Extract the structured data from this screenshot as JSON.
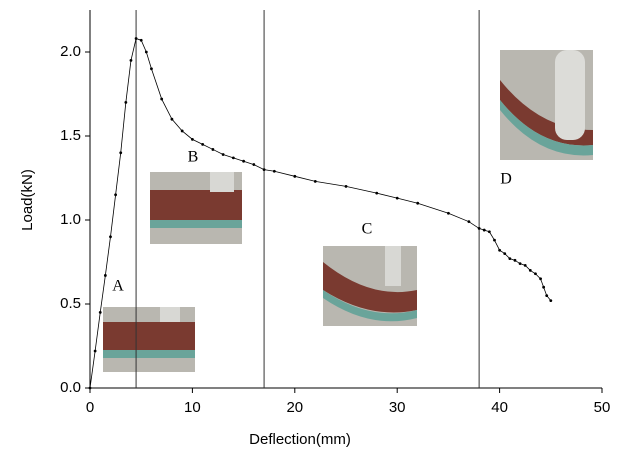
{
  "chart_data": {
    "type": "line",
    "xlabel": "Deflection(mm)",
    "ylabel": "Load(kN)",
    "x": [
      0,
      0.5,
      1,
      1.5,
      2,
      2.5,
      3,
      3.5,
      4,
      4.5,
      5,
      5.5,
      6,
      7,
      8,
      9,
      10,
      11,
      12,
      13,
      14,
      15,
      16,
      17,
      18,
      20,
      22,
      25,
      28,
      30,
      32,
      35,
      37,
      38,
      38.5,
      39,
      39.5,
      40,
      40.5,
      41,
      41.5,
      42,
      42.5,
      43,
      43.5,
      44,
      44.3,
      44.6,
      45
    ],
    "series": [
      {
        "color": "#000000",
        "values": [
          0,
          0.22,
          0.45,
          0.67,
          0.9,
          1.15,
          1.4,
          1.7,
          1.95,
          2.08,
          2.07,
          2.0,
          1.9,
          1.72,
          1.6,
          1.53,
          1.48,
          1.45,
          1.42,
          1.39,
          1.37,
          1.35,
          1.33,
          1.3,
          1.29,
          1.26,
          1.23,
          1.2,
          1.16,
          1.13,
          1.1,
          1.04,
          0.99,
          0.95,
          0.94,
          0.93,
          0.88,
          0.82,
          0.8,
          0.77,
          0.76,
          0.74,
          0.73,
          0.7,
          0.68,
          0.65,
          0.6,
          0.55,
          0.52
        ]
      }
    ],
    "xlim": [
      0,
      50
    ],
    "xticks": [
      0,
      10,
      20,
      30,
      40,
      50
    ],
    "ylim": [
      0,
      2.25
    ],
    "yticks": [
      {
        "value": 0,
        "label": "0.0"
      },
      0.5,
      {
        "value": 1,
        "label": "1.0"
      },
      1.5,
      {
        "value": 2,
        "label": "2.0"
      }
    ],
    "vlines": [
      4.5,
      17,
      38
    ],
    "annotations": [
      "A",
      "B",
      "C",
      "D"
    ]
  }
}
